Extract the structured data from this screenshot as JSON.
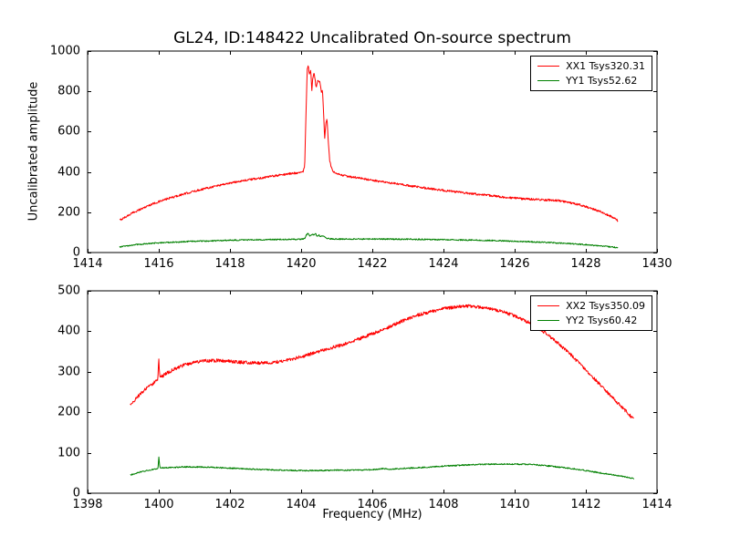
{
  "figure": {
    "background": "#ffffff",
    "line_color_red": "#ff0000",
    "line_color_green": "#008000"
  },
  "chart_data": [
    {
      "type": "line",
      "title": "GL24, ID:148422 Uncalibrated On-source spectrum",
      "xlabel": "",
      "ylabel": "Uncalibrated amplitude",
      "xlim": [
        1414,
        1430
      ],
      "ylim": [
        0,
        1000
      ],
      "grid": false,
      "legend_position": "upper right",
      "xticks": [
        1414,
        1416,
        1418,
        1420,
        1422,
        1424,
        1426,
        1428,
        1430
      ],
      "xtick_labels": [
        "1414",
        "1416",
        "1418",
        "1420",
        "1422",
        "1424",
        "1426",
        "1428",
        "1430"
      ],
      "yticks": [
        0,
        200,
        400,
        600,
        800,
        1000
      ],
      "ytick_labels": [
        "0",
        "200",
        "400",
        "600",
        "800",
        "1000"
      ],
      "series": [
        {
          "name": "XX1 Tsys320.31",
          "color": "#ff0000",
          "noise": 5,
          "points": [
            [
              1414.9,
              160
            ],
            [
              1415.3,
              200
            ],
            [
              1415.8,
              240
            ],
            [
              1416.3,
              270
            ],
            [
              1416.8,
              295
            ],
            [
              1417.3,
              318
            ],
            [
              1417.8,
              338
            ],
            [
              1418.3,
              355
            ],
            [
              1418.8,
              368
            ],
            [
              1419.3,
              382
            ],
            [
              1419.7,
              392
            ],
            [
              1420.0,
              398
            ],
            [
              1420.05,
              400
            ],
            [
              1420.1,
              430
            ],
            [
              1420.13,
              640
            ],
            [
              1420.17,
              905
            ],
            [
              1420.2,
              930
            ],
            [
              1420.23,
              880
            ],
            [
              1420.27,
              905
            ],
            [
              1420.3,
              800
            ],
            [
              1420.33,
              870
            ],
            [
              1420.37,
              890
            ],
            [
              1420.42,
              820
            ],
            [
              1420.47,
              855
            ],
            [
              1420.52,
              850
            ],
            [
              1420.57,
              800
            ],
            [
              1420.6,
              810
            ],
            [
              1420.63,
              700
            ],
            [
              1420.66,
              560
            ],
            [
              1420.7,
              650
            ],
            [
              1420.73,
              660
            ],
            [
              1420.76,
              560
            ],
            [
              1420.8,
              460
            ],
            [
              1420.85,
              420
            ],
            [
              1420.9,
              400
            ],
            [
              1421.0,
              390
            ],
            [
              1421.3,
              378
            ],
            [
              1421.8,
              365
            ],
            [
              1422.3,
              350
            ],
            [
              1422.8,
              338
            ],
            [
              1423.3,
              325
            ],
            [
              1423.8,
              313
            ],
            [
              1424.3,
              302
            ],
            [
              1424.8,
              292
            ],
            [
              1425.3,
              283
            ],
            [
              1425.8,
              273
            ],
            [
              1426.3,
              266
            ],
            [
              1426.8,
              262
            ],
            [
              1427.2,
              258
            ],
            [
              1427.5,
              250
            ],
            [
              1427.8,
              238
            ],
            [
              1428.1,
              222
            ],
            [
              1428.4,
              203
            ],
            [
              1428.7,
              180
            ],
            [
              1428.9,
              158
            ]
          ]
        },
        {
          "name": "YY1 Tsys52.62",
          "color": "#008000",
          "noise": 3,
          "points": [
            [
              1414.9,
              28
            ],
            [
              1415.4,
              40
            ],
            [
              1416.0,
              48
            ],
            [
              1416.5,
              52
            ],
            [
              1417.0,
              56
            ],
            [
              1417.5,
              58
            ],
            [
              1418.0,
              61
            ],
            [
              1418.5,
              63
            ],
            [
              1419.0,
              64
            ],
            [
              1419.5,
              65
            ],
            [
              1420.0,
              66
            ],
            [
              1420.1,
              70
            ],
            [
              1420.15,
              88
            ],
            [
              1420.2,
              95
            ],
            [
              1420.25,
              82
            ],
            [
              1420.3,
              92
            ],
            [
              1420.35,
              88
            ],
            [
              1420.4,
              95
            ],
            [
              1420.45,
              80
            ],
            [
              1420.5,
              86
            ],
            [
              1420.55,
              78
            ],
            [
              1420.6,
              84
            ],
            [
              1420.7,
              72
            ],
            [
              1420.8,
              68
            ],
            [
              1421.0,
              67
            ],
            [
              1421.5,
              67
            ],
            [
              1422.0,
              67
            ],
            [
              1423.0,
              66
            ],
            [
              1424.0,
              64
            ],
            [
              1425.0,
              61
            ],
            [
              1425.5,
              59
            ],
            [
              1426.0,
              56
            ],
            [
              1426.5,
              53
            ],
            [
              1427.0,
              49
            ],
            [
              1427.5,
              45
            ],
            [
              1428.0,
              39
            ],
            [
              1428.5,
              32
            ],
            [
              1428.9,
              24
            ]
          ]
        }
      ]
    },
    {
      "type": "line",
      "title": "",
      "xlabel": "Frequency (MHz)",
      "ylabel": "",
      "xlim": [
        1398,
        1414
      ],
      "ylim": [
        0,
        500
      ],
      "grid": false,
      "legend_position": "upper right",
      "xticks": [
        1398,
        1400,
        1402,
        1404,
        1406,
        1408,
        1410,
        1412,
        1414
      ],
      "xtick_labels": [
        "1398",
        "1400",
        "1402",
        "1404",
        "1406",
        "1408",
        "1410",
        "1412",
        "1414"
      ],
      "yticks": [
        0,
        100,
        200,
        300,
        400,
        500
      ],
      "ytick_labels": [
        "0",
        "100",
        "200",
        "300",
        "400",
        "500"
      ],
      "series": [
        {
          "name": "XX2 Tsys350.09",
          "color": "#ff0000",
          "noise": 4,
          "points": [
            [
              1399.2,
              218
            ],
            [
              1399.4,
              238
            ],
            [
              1399.6,
              255
            ],
            [
              1399.8,
              268
            ],
            [
              1399.93,
              278
            ],
            [
              1399.97,
              280
            ],
            [
              1400.0,
              332
            ],
            [
              1400.03,
              285
            ],
            [
              1400.2,
              295
            ],
            [
              1400.4,
              305
            ],
            [
              1400.7,
              316
            ],
            [
              1401.0,
              324
            ],
            [
              1401.3,
              327
            ],
            [
              1401.6,
              328
            ],
            [
              1402.0,
              326
            ],
            [
              1402.4,
              323
            ],
            [
              1402.8,
              322
            ],
            [
              1403.2,
              323
            ],
            [
              1403.6,
              328
            ],
            [
              1404.0,
              337
            ],
            [
              1404.4,
              348
            ],
            [
              1404.8,
              358
            ],
            [
              1405.2,
              368
            ],
            [
              1405.6,
              380
            ],
            [
              1406.0,
              394
            ],
            [
              1406.4,
              408
            ],
            [
              1406.8,
              424
            ],
            [
              1407.2,
              438
            ],
            [
              1407.6,
              448
            ],
            [
              1408.0,
              456
            ],
            [
              1408.4,
              461
            ],
            [
              1408.8,
              462
            ],
            [
              1409.2,
              458
            ],
            [
              1409.6,
              450
            ],
            [
              1410.0,
              438
            ],
            [
              1410.4,
              422
            ],
            [
              1410.8,
              400
            ],
            [
              1411.2,
              372
            ],
            [
              1411.6,
              340
            ],
            [
              1412.0,
              305
            ],
            [
              1412.4,
              268
            ],
            [
              1412.8,
              232
            ],
            [
              1413.1,
              205
            ],
            [
              1413.35,
              182
            ]
          ]
        },
        {
          "name": "YY2 Tsys60.42",
          "color": "#008000",
          "noise": 1.5,
          "points": [
            [
              1399.2,
              45
            ],
            [
              1399.5,
              53
            ],
            [
              1399.8,
              58
            ],
            [
              1399.95,
              60
            ],
            [
              1399.98,
              62
            ],
            [
              1400.0,
              90
            ],
            [
              1400.03,
              63
            ],
            [
              1400.3,
              63
            ],
            [
              1400.7,
              65
            ],
            [
              1401.0,
              65
            ],
            [
              1401.5,
              64
            ],
            [
              1402.0,
              62
            ],
            [
              1402.5,
              60
            ],
            [
              1403.0,
              58
            ],
            [
              1403.5,
              57
            ],
            [
              1404.0,
              56
            ],
            [
              1404.5,
              56
            ],
            [
              1405.0,
              57
            ],
            [
              1405.5,
              57
            ],
            [
              1406.0,
              58
            ],
            [
              1406.3,
              61
            ],
            [
              1406.45,
              59
            ],
            [
              1407.0,
              62
            ],
            [
              1407.5,
              64
            ],
            [
              1408.0,
              67
            ],
            [
              1408.5,
              69
            ],
            [
              1409.0,
              71
            ],
            [
              1409.5,
              72
            ],
            [
              1410.0,
              72
            ],
            [
              1410.5,
              71
            ],
            [
              1411.0,
              67
            ],
            [
              1411.5,
              62
            ],
            [
              1412.0,
              56
            ],
            [
              1412.5,
              49
            ],
            [
              1413.0,
              42
            ],
            [
              1413.35,
              36
            ]
          ]
        }
      ]
    }
  ]
}
